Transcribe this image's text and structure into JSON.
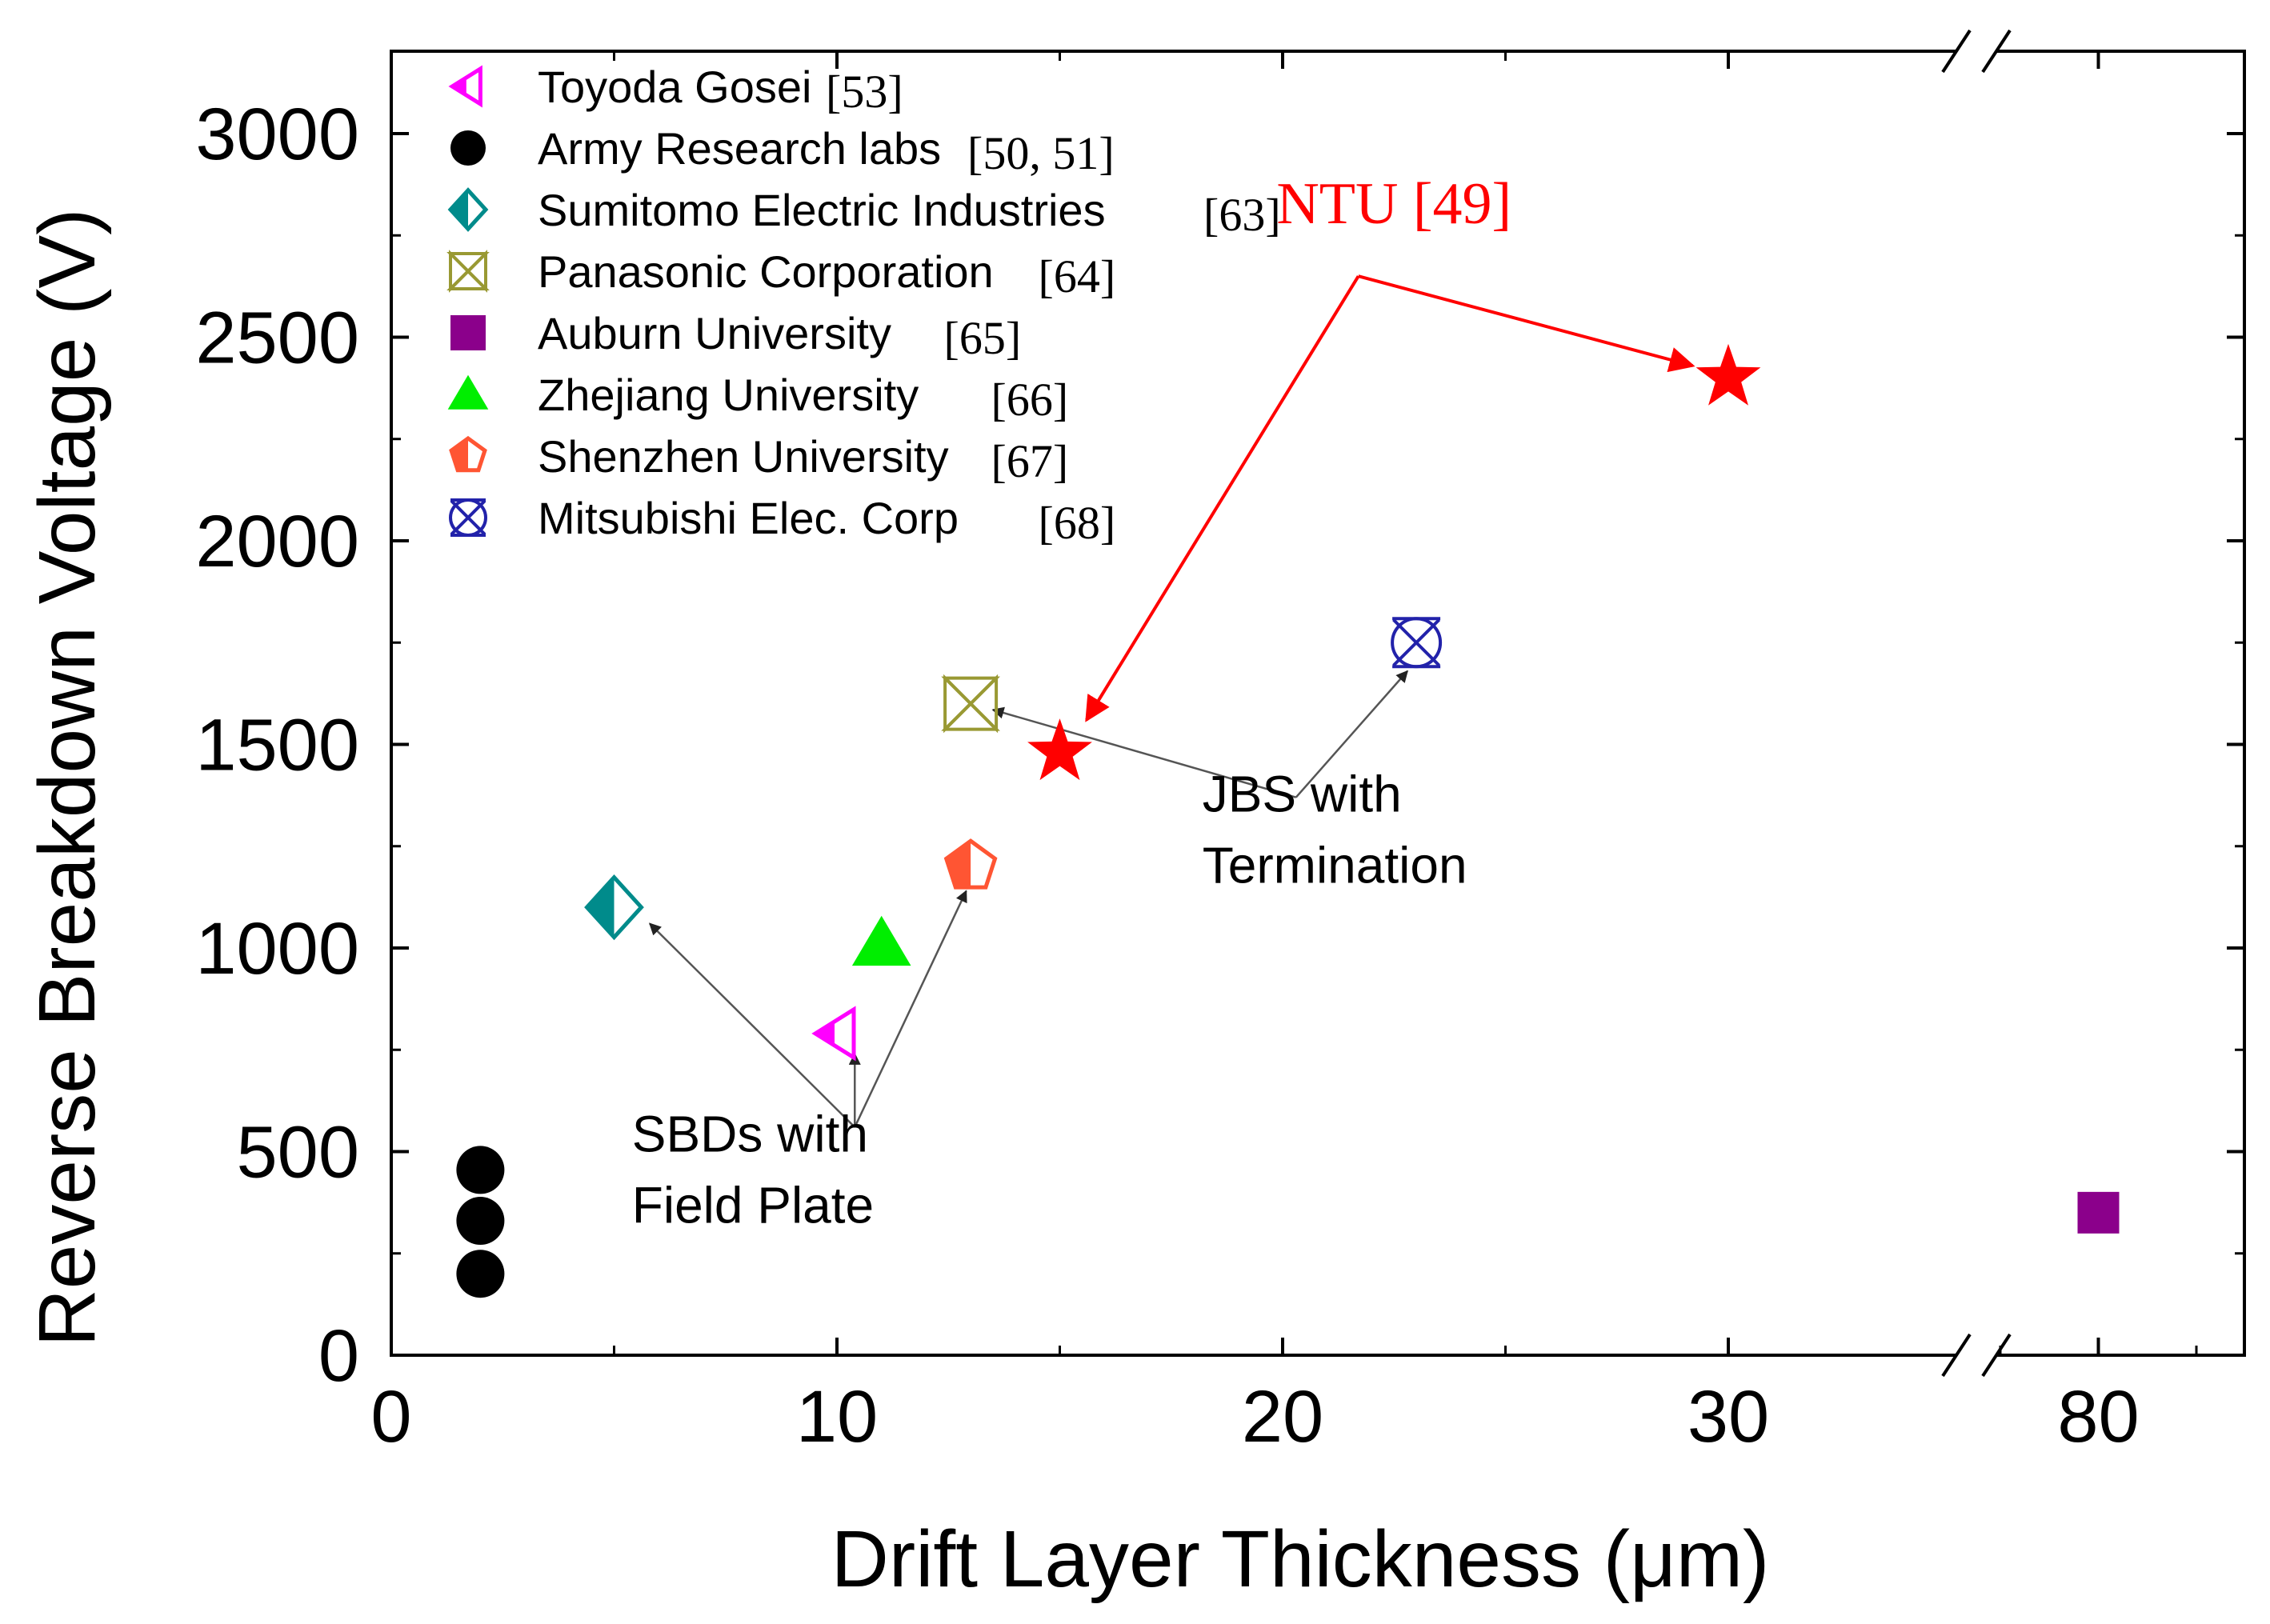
{
  "chart_data": {
    "type": "scatter",
    "xlabel": "Drift Layer Thickness (μm)",
    "ylabel": "Reverse Breakdown Voltage (V)",
    "xlim": [
      0,
      35
    ],
    "xlim_broken_segment": [
      77,
      83
    ],
    "ylim": [
      0,
      3200
    ],
    "x_ticks": [
      0,
      10,
      20,
      30,
      80
    ],
    "x_tick_labels": [
      "0",
      "10",
      "20",
      "30",
      "80"
    ],
    "y_ticks": [
      0,
      500,
      1000,
      1500,
      2000,
      2500,
      3000
    ],
    "y_tick_labels": [
      "0",
      "500",
      "1000",
      "1500",
      "2000",
      "2500",
      "3000"
    ],
    "axis_break": true,
    "legend_position": "top-left",
    "series": [
      {
        "name": "Toyoda Gosei",
        "ref": "[53]",
        "marker": "half-left-triangle",
        "color": "#ff00ff",
        "points": [
          {
            "x": 10,
            "y": 790
          }
        ]
      },
      {
        "name": "Army Research labs",
        "ref": "[50, 51]",
        "marker": "circle",
        "color": "#000000",
        "points": [
          {
            "x": 2,
            "y": 455
          },
          {
            "x": 2,
            "y": 330
          },
          {
            "x": 2,
            "y": 200
          }
        ]
      },
      {
        "name": "Sumitomo Electric Industries",
        "ref": "[63]",
        "marker": "half-diamond",
        "color": "#008b8b",
        "points": [
          {
            "x": 5,
            "y": 1100
          }
        ]
      },
      {
        "name": "Panasonic Corporation",
        "ref": "[64]",
        "marker": "bowtie-x",
        "color": "#999933",
        "points": [
          {
            "x": 13,
            "y": 1600
          }
        ]
      },
      {
        "name": "Auburn University",
        "ref": "[65]",
        "marker": "square",
        "color": "#8b008b",
        "points": [
          {
            "x": 80,
            "y": 350
          }
        ]
      },
      {
        "name": "Zhejiang University",
        "ref": "[66]",
        "marker": "triangle",
        "color": "#00ee00",
        "points": [
          {
            "x": 11,
            "y": 1010
          }
        ]
      },
      {
        "name": "Shenzhen University",
        "ref": "[67]",
        "marker": "half-pentagon",
        "color": "#ff5533",
        "points": [
          {
            "x": 13,
            "y": 1200
          }
        ]
      },
      {
        "name": "Mitsubishi Elec. Corp",
        "ref": "[68]",
        "marker": "circle-x",
        "color": "#2222aa",
        "points": [
          {
            "x": 23,
            "y": 1750
          }
        ]
      },
      {
        "name": "NTU",
        "ref": "[49]",
        "marker": "star",
        "color": "#ff0000",
        "in_legend": false,
        "points": [
          {
            "x": 15,
            "y": 1480
          },
          {
            "x": 30,
            "y": 2400
          }
        ]
      }
    ],
    "annotations": [
      {
        "text": "NTU [49]",
        "color": "#ff0000",
        "x": 22.5,
        "y": 2780
      },
      {
        "text": "JBS with",
        "color": "#000000",
        "x": 18.2,
        "y": 1335
      },
      {
        "text": "Termination",
        "color": "#000000",
        "x": 18.2,
        "y": 1160
      },
      {
        "text": "SBDs with",
        "color": "#000000",
        "x": 5.4,
        "y": 500
      },
      {
        "text": "Field Plate",
        "color": "#000000",
        "x": 5.4,
        "y": 325
      }
    ],
    "arrows": [
      {
        "color": "#ff0000",
        "from": {
          "x": 21.7,
          "y": 2650
        },
        "to": {
          "x": 15.6,
          "y": 1560
        }
      },
      {
        "color": "#ff0000",
        "from": {
          "x": 21.7,
          "y": 2650
        },
        "to": {
          "x": 29.2,
          "y": 2430
        }
      },
      {
        "color": "#555555",
        "from": {
          "x": 20.3,
          "y": 1370
        },
        "to": {
          "x": 13.5,
          "y": 1585
        }
      },
      {
        "color": "#555555",
        "from": {
          "x": 20.3,
          "y": 1370
        },
        "to": {
          "x": 22.8,
          "y": 1680
        }
      },
      {
        "color": "#555555",
        "from": {
          "x": 10.4,
          "y": 560
        },
        "to": {
          "x": 5.8,
          "y": 1060
        }
      },
      {
        "color": "#555555",
        "from": {
          "x": 10.4,
          "y": 560
        },
        "to": {
          "x": 10.4,
          "y": 740
        }
      },
      {
        "color": "#555555",
        "from": {
          "x": 10.4,
          "y": 560
        },
        "to": {
          "x": 12.9,
          "y": 1140
        }
      }
    ]
  }
}
